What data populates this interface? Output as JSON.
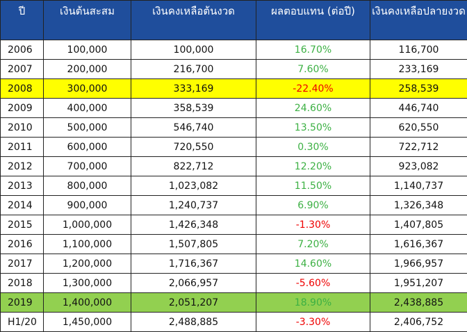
{
  "table": {
    "header": [
      "ปี",
      "เงินต้นสะสม",
      "เงินคงเหลือต้นงวด",
      "ผลตอบแทน (ต่อปี)",
      "เงินคงเหลือปลายงวด"
    ],
    "rows": [
      {
        "cells": [
          "2006",
          "100,000",
          "100,000",
          "16.70%",
          "116,700"
        ]
      },
      {
        "cells": [
          "2007",
          "200,000",
          "216,700",
          "7.60%",
          "233,169"
        ]
      },
      {
        "cells": [
          "2008",
          "300,000",
          "333,169",
          "-22.40%",
          "258,539"
        ],
        "fill": "#ffff00"
      },
      {
        "cells": [
          "2009",
          "400,000",
          "358,539",
          "24.60%",
          "446,740"
        ]
      },
      {
        "cells": [
          "2010",
          "500,000",
          "546,740",
          "13.50%",
          "620,550"
        ]
      },
      {
        "cells": [
          "2011",
          "600,000",
          "720,550",
          "0.30%",
          "722,712"
        ]
      },
      {
        "cells": [
          "2012",
          "700,000",
          "822,712",
          "12.20%",
          "923,082"
        ]
      },
      {
        "cells": [
          "2013",
          "800,000",
          "1,023,082",
          "11.50%",
          "1,140,737"
        ]
      },
      {
        "cells": [
          "2014",
          "900,000",
          "1,240,737",
          "6.90%",
          "1,326,348"
        ]
      },
      {
        "cells": [
          "2015",
          "1,000,000",
          "1,426,348",
          "-1.30%",
          "1,407,805"
        ]
      },
      {
        "cells": [
          "2016",
          "1,100,000",
          "1,507,805",
          "7.20%",
          "1,616,367"
        ]
      },
      {
        "cells": [
          "2017",
          "1,200,000",
          "1,716,367",
          "14.60%",
          "1,966,957"
        ]
      },
      {
        "cells": [
          "2018",
          "1,300,000",
          "2,066,957",
          "-5.60%",
          "1,951,207"
        ]
      },
      {
        "cells": [
          "2019",
          "1,400,000",
          "2,051,207",
          "18.90%",
          "2,438,885"
        ],
        "fill": "#92d050"
      },
      {
        "cells": [
          "H1/20",
          "1,450,000",
          "2,488,885",
          "-3.30%",
          "2,406,752"
        ]
      }
    ]
  }
}
